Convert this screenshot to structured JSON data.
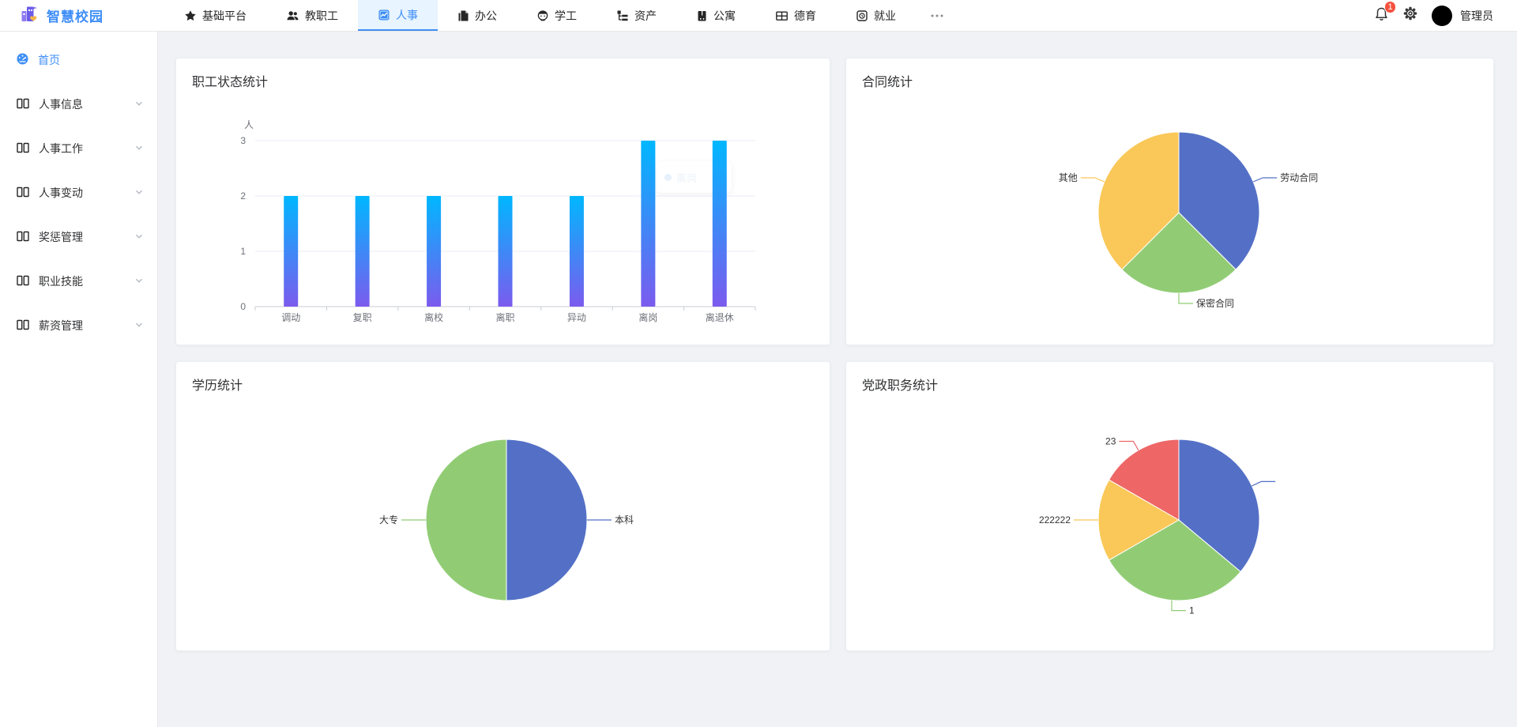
{
  "brand": {
    "title": "智慧校园"
  },
  "topnav": {
    "items": [
      {
        "key": "base-platform",
        "icon": "star",
        "label": "基础平台",
        "active": false
      },
      {
        "key": "staff",
        "icon": "people",
        "label": "教职工",
        "active": false
      },
      {
        "key": "hr",
        "icon": "hr-app",
        "label": "人事",
        "active": true
      },
      {
        "key": "office",
        "icon": "document",
        "label": "办公",
        "active": false
      },
      {
        "key": "student-affairs",
        "icon": "student",
        "label": "学工",
        "active": false
      },
      {
        "key": "assets",
        "icon": "asset-tree",
        "label": "资产",
        "active": false
      },
      {
        "key": "apartment",
        "icon": "building",
        "label": "公寓",
        "active": false
      },
      {
        "key": "moral-education",
        "icon": "grid-window",
        "label": "德育",
        "active": false
      },
      {
        "key": "employment",
        "icon": "clock-box",
        "label": "就业",
        "active": false
      }
    ],
    "right": {
      "notification_count": "1",
      "username": "管理员"
    }
  },
  "sidebar": {
    "items": [
      {
        "key": "home",
        "icon": "dashboard",
        "label": "首页",
        "active": true,
        "expandable": false
      },
      {
        "key": "hr-info",
        "icon": "book",
        "label": "人事信息",
        "active": false,
        "expandable": true
      },
      {
        "key": "hr-work",
        "icon": "book",
        "label": "人事工作",
        "active": false,
        "expandable": true
      },
      {
        "key": "hr-change",
        "icon": "book",
        "label": "人事变动",
        "active": false,
        "expandable": true
      },
      {
        "key": "reward-punishment",
        "icon": "book",
        "label": "奖惩管理",
        "active": false,
        "expandable": true
      },
      {
        "key": "vocational-skill",
        "icon": "book",
        "label": "职业技能",
        "active": false,
        "expandable": true
      },
      {
        "key": "salary",
        "icon": "book",
        "label": "薪资管理",
        "active": false,
        "expandable": true
      }
    ]
  },
  "chart_data": [
    {
      "type": "bar",
      "title": "职工状态统计",
      "unit": "人",
      "categories": [
        "调动",
        "复职",
        "离校",
        "离职",
        "异动",
        "离岗",
        "离退休"
      ],
      "values": [
        2,
        2,
        2,
        2,
        2,
        3,
        3
      ],
      "ylim": [
        0,
        3
      ],
      "yticks": [
        0,
        1,
        2,
        3
      ],
      "grid": true,
      "legend": "none",
      "bar_gradient_top": "#00b7ff",
      "bar_gradient_bottom": "#7b5bee",
      "ghost_tooltip": {
        "category": "离岗",
        "value": "3"
      }
    },
    {
      "type": "pie",
      "title": "合同统计",
      "slices": [
        {
          "name": "劳动合同",
          "percent": 37.5,
          "color": "#5470c6"
        },
        {
          "name": "保密合同",
          "percent": 25.0,
          "color": "#91cc75"
        },
        {
          "name": "其他",
          "percent": 37.5,
          "color": "#fac858"
        }
      ]
    },
    {
      "type": "pie",
      "title": "学历统计",
      "slices": [
        {
          "name": "本科",
          "percent": 50,
          "color": "#5470c6"
        },
        {
          "name": "大专",
          "percent": 50,
          "color": "#91cc75"
        }
      ]
    },
    {
      "type": "pie",
      "title": "党政职务统计",
      "slices": [
        {
          "name": "",
          "percent": 36.1,
          "color": "#5470c6"
        },
        {
          "name": "1",
          "percent": 30.6,
          "color": "#91cc75"
        },
        {
          "name": "222222",
          "percent": 16.6,
          "color": "#fac858"
        },
        {
          "name": "23",
          "percent": 16.7,
          "color": "#ee6666"
        }
      ]
    }
  ],
  "colors": {
    "accent": "#3e8ef7",
    "active_tab_bg": "#e8f4ff",
    "badge": "#f5513d",
    "axis_label": "#6e7079",
    "grid_line": "#e8ecf4",
    "pie_palette": [
      "#5470c6",
      "#91cc75",
      "#fac858",
      "#ee6666"
    ]
  }
}
